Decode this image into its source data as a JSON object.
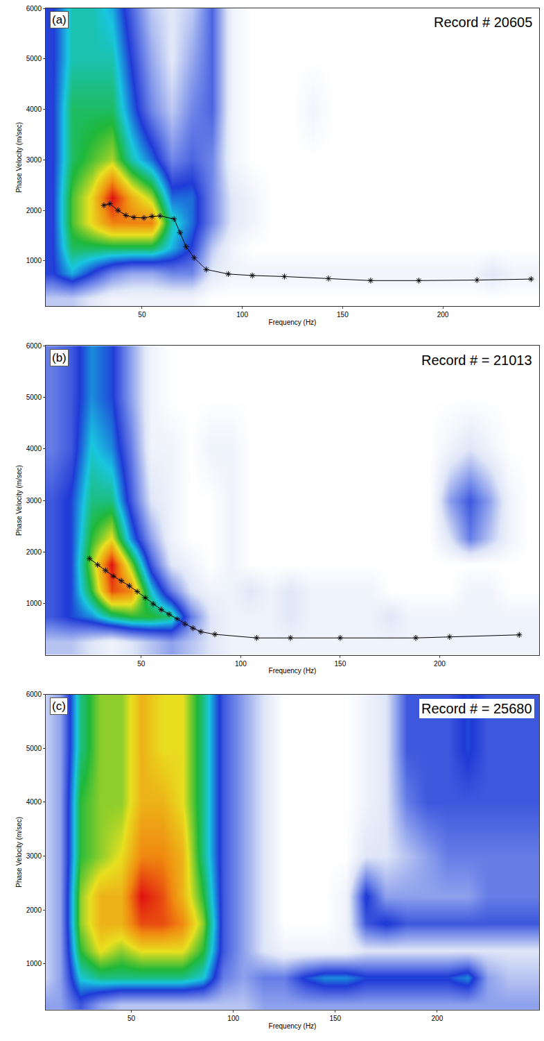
{
  "chart_data": [
    {
      "type": "heatmap",
      "panel": "(a)",
      "annotation": "Record # 20605",
      "x_label": "Frequency (Hz)",
      "y_label": "Phase Velocity (m/sec)",
      "xlim": [
        2,
        248
      ],
      "ylim": [
        100,
        6000
      ],
      "xticks": [
        50,
        100,
        150,
        200
      ],
      "yticks": [
        1000,
        2000,
        3000,
        4000,
        5000,
        6000
      ],
      "grid": false,
      "x": [
        5,
        15,
        25,
        35,
        45,
        55,
        65,
        75,
        85,
        95,
        105,
        115,
        125,
        135,
        145,
        155,
        165,
        175,
        185,
        195,
        205,
        215,
        225,
        235,
        245
      ],
      "y": [
        250,
        750,
        1250,
        1750,
        2250,
        3000,
        4000,
        5000,
        6000
      ],
      "z": [
        [
          0.2,
          0.2,
          0.15,
          0.1,
          0.1,
          0.1,
          0.1,
          0.1,
          0.05,
          0.05,
          0.05,
          0.05,
          0.05,
          0.05,
          0.05,
          0.05,
          0.05,
          0.05,
          0.05,
          0.05,
          0.05,
          0.05,
          0.05,
          0.05,
          0.05
        ],
        [
          0.4,
          0.5,
          0.4,
          0.3,
          0.25,
          0.25,
          0.3,
          0.3,
          0.15,
          0.1,
          0.1,
          0.1,
          0.1,
          0.1,
          0.1,
          0.1,
          0.1,
          0.1,
          0.1,
          0.1,
          0.1,
          0.1,
          0.15,
          0.1,
          0.1
        ],
        [
          0.4,
          0.6,
          0.6,
          0.6,
          0.6,
          0.6,
          0.5,
          0.4,
          0.2,
          0.1,
          0.05,
          0.05,
          0.05,
          0.05,
          0.05,
          0.05,
          0.05,
          0.05,
          0.05,
          0.05,
          0.05,
          0.05,
          0.05,
          0.05,
          0.05
        ],
        [
          0.4,
          0.65,
          0.75,
          0.85,
          0.85,
          0.85,
          0.55,
          0.45,
          0.3,
          0.15,
          0.1,
          0.05,
          0.05,
          0.05,
          0.05,
          0.05,
          0.05,
          0.05,
          0.05,
          0.05,
          0.05,
          0.05,
          0.05,
          0.05,
          0.05
        ],
        [
          0.4,
          0.65,
          0.75,
          0.95,
          0.8,
          0.7,
          0.45,
          0.45,
          0.3,
          0.15,
          0.1,
          0.05,
          0.05,
          0.05,
          0.05,
          0.05,
          0.05,
          0.05,
          0.05,
          0.05,
          0.05,
          0.05,
          0.05,
          0.05,
          0.05
        ],
        [
          0.4,
          0.6,
          0.65,
          0.7,
          0.55,
          0.45,
          0.3,
          0.35,
          0.3,
          0.1,
          0.05,
          0.05,
          0.05,
          0.05,
          0.05,
          0.05,
          0.05,
          0.05,
          0.05,
          0.05,
          0.05,
          0.05,
          0.05,
          0.05,
          0.05
        ],
        [
          0.4,
          0.6,
          0.6,
          0.6,
          0.45,
          0.3,
          0.2,
          0.3,
          0.35,
          0.1,
          0.05,
          0.05,
          0.05,
          0.1,
          0.05,
          0.05,
          0.05,
          0.05,
          0.05,
          0.05,
          0.05,
          0.05,
          0.05,
          0.05,
          0.05
        ],
        [
          0.4,
          0.55,
          0.55,
          0.55,
          0.4,
          0.25,
          0.15,
          0.25,
          0.35,
          0.1,
          0.05,
          0.05,
          0.05,
          0.05,
          0.05,
          0.05,
          0.05,
          0.05,
          0.05,
          0.05,
          0.05,
          0.05,
          0.05,
          0.05,
          0.05
        ],
        [
          0.4,
          0.55,
          0.55,
          0.5,
          0.35,
          0.2,
          0.15,
          0.2,
          0.35,
          0.1,
          0.05,
          0.05,
          0.05,
          0.05,
          0.05,
          0.05,
          0.05,
          0.05,
          0.05,
          0.05,
          0.05,
          0.05,
          0.05,
          0.05,
          0.05
        ]
      ],
      "series": [
        {
          "type": "line",
          "color": "#000000",
          "marker": "asterisk",
          "x": [
            31,
            34,
            38,
            42,
            46,
            51,
            55,
            59,
            66,
            69,
            72,
            76,
            82,
            93,
            105,
            121,
            143,
            164,
            188,
            217,
            244
          ],
          "values": [
            2100,
            2130,
            2000,
            1900,
            1860,
            1850,
            1880,
            1890,
            1830,
            1560,
            1280,
            1060,
            830,
            740,
            710,
            690,
            650,
            610,
            610,
            620,
            640
          ]
        }
      ]
    },
    {
      "type": "heatmap",
      "panel": "(b)",
      "annotation": "Record # = 21013",
      "x_label": "Frequency (Hz)",
      "y_label": "Phase Velocity (m/sec)",
      "xlim": [
        2,
        250
      ],
      "ylim": [
        0,
        6000
      ],
      "xticks": [
        50,
        100,
        150,
        200
      ],
      "yticks": [
        1000,
        2000,
        3000,
        4000,
        5000,
        6000
      ],
      "grid": false,
      "x": [
        5,
        15,
        25,
        35,
        45,
        55,
        65,
        75,
        85,
        95,
        105,
        115,
        125,
        135,
        145,
        155,
        165,
        175,
        185,
        195,
        205,
        215,
        225,
        235,
        245
      ],
      "y": [
        250,
        750,
        1250,
        1750,
        2250,
        3000,
        4000,
        5000,
        6000
      ],
      "z": [
        [
          0.2,
          0.2,
          0.15,
          0.1,
          0.15,
          0.2,
          0.25,
          0.2,
          0.15,
          0.1,
          0.1,
          0.1,
          0.1,
          0.1,
          0.1,
          0.1,
          0.1,
          0.1,
          0.1,
          0.1,
          0.1,
          0.1,
          0.1,
          0.1,
          0.1
        ],
        [
          0.35,
          0.4,
          0.45,
          0.55,
          0.6,
          0.6,
          0.55,
          0.3,
          0.15,
          0.1,
          0.1,
          0.1,
          0.15,
          0.1,
          0.1,
          0.1,
          0.1,
          0.15,
          0.1,
          0.1,
          0.1,
          0.1,
          0.1,
          0.1,
          0.1
        ],
        [
          0.35,
          0.4,
          0.6,
          0.85,
          0.8,
          0.5,
          0.3,
          0.15,
          0.1,
          0.1,
          0.15,
          0.1,
          0.15,
          0.1,
          0.1,
          0.1,
          0.1,
          0.05,
          0.05,
          0.05,
          0.05,
          0.1,
          0.1,
          0.05,
          0.05
        ],
        [
          0.35,
          0.4,
          0.65,
          0.9,
          0.65,
          0.35,
          0.15,
          0.1,
          0.05,
          0.1,
          0.05,
          0.05,
          0.05,
          0.05,
          0.05,
          0.05,
          0.05,
          0.05,
          0.05,
          0.05,
          0.05,
          0.05,
          0.05,
          0.05,
          0.05
        ],
        [
          0.35,
          0.4,
          0.6,
          0.7,
          0.45,
          0.25,
          0.1,
          0.05,
          0.05,
          0.1,
          0.05,
          0.05,
          0.05,
          0.05,
          0.05,
          0.05,
          0.05,
          0.05,
          0.05,
          0.05,
          0.15,
          0.3,
          0.2,
          0.1,
          0.05
        ],
        [
          0.35,
          0.4,
          0.55,
          0.55,
          0.35,
          0.15,
          0.1,
          0.05,
          0.05,
          0.1,
          0.05,
          0.05,
          0.05,
          0.05,
          0.05,
          0.05,
          0.05,
          0.05,
          0.05,
          0.05,
          0.25,
          0.35,
          0.25,
          0.1,
          0.05
        ],
        [
          0.3,
          0.35,
          0.5,
          0.45,
          0.3,
          0.1,
          0.1,
          0.05,
          0.1,
          0.1,
          0.05,
          0.05,
          0.05,
          0.05,
          0.05,
          0.05,
          0.05,
          0.05,
          0.05,
          0.05,
          0.1,
          0.15,
          0.1,
          0.05,
          0.05
        ],
        [
          0.3,
          0.35,
          0.45,
          0.4,
          0.25,
          0.1,
          0.05,
          0.05,
          0.05,
          0.05,
          0.05,
          0.05,
          0.05,
          0.05,
          0.05,
          0.05,
          0.05,
          0.05,
          0.05,
          0.05,
          0.05,
          0.05,
          0.05,
          0.05,
          0.05
        ],
        [
          0.3,
          0.35,
          0.45,
          0.4,
          0.25,
          0.1,
          0.05,
          0.05,
          0.05,
          0.05,
          0.05,
          0.05,
          0.05,
          0.05,
          0.05,
          0.05,
          0.05,
          0.05,
          0.05,
          0.05,
          0.05,
          0.05,
          0.05,
          0.05,
          0.05
        ]
      ],
      "series": [
        {
          "type": "line",
          "color": "#000000",
          "marker": "asterisk",
          "x": [
            24,
            28,
            32,
            36,
            40,
            44,
            48,
            52,
            56,
            60,
            64,
            68,
            72,
            76,
            80,
            87,
            108,
            125,
            150,
            188,
            205,
            240
          ],
          "values": [
            1870,
            1750,
            1640,
            1530,
            1440,
            1340,
            1230,
            1110,
            990,
            880,
            790,
            700,
            600,
            520,
            450,
            400,
            330,
            330,
            330,
            330,
            350,
            390
          ]
        }
      ]
    },
    {
      "type": "heatmap",
      "panel": "(c)",
      "annotation": "Record # = 25680",
      "x_label": "Frequency (Hz)",
      "y_label": "Phase Velocity (m/sec)",
      "xlim": [
        8,
        250
      ],
      "ylim": [
        150,
        6000
      ],
      "xticks": [
        50,
        100,
        150,
        200
      ],
      "yticks": [
        1000,
        2000,
        3000,
        4000,
        5000,
        6000
      ],
      "grid": false,
      "x": [
        5,
        15,
        25,
        35,
        45,
        55,
        65,
        75,
        85,
        95,
        105,
        115,
        125,
        135,
        145,
        155,
        165,
        175,
        185,
        195,
        205,
        215,
        225,
        235,
        245
      ],
      "y": [
        250,
        750,
        1250,
        1750,
        2250,
        3000,
        4000,
        5000,
        6000
      ],
      "z": [
        [
          0.2,
          0.2,
          0.3,
          0.2,
          0.15,
          0.15,
          0.15,
          0.15,
          0.15,
          0.15,
          0.15,
          0.2,
          0.2,
          0.2,
          0.2,
          0.2,
          0.2,
          0.2,
          0.2,
          0.2,
          0.2,
          0.2,
          0.2,
          0.2,
          0.2
        ],
        [
          0.1,
          0.2,
          0.45,
          0.5,
          0.5,
          0.5,
          0.5,
          0.5,
          0.45,
          0.25,
          0.2,
          0.25,
          0.25,
          0.35,
          0.4,
          0.4,
          0.35,
          0.35,
          0.35,
          0.35,
          0.35,
          0.4,
          0.2,
          0.15,
          0.15
        ],
        [
          0.1,
          0.2,
          0.55,
          0.65,
          0.6,
          0.65,
          0.65,
          0.65,
          0.55,
          0.3,
          0.2,
          0.1,
          0.05,
          0.05,
          0.05,
          0.05,
          0.1,
          0.1,
          0.1,
          0.1,
          0.1,
          0.1,
          0.1,
          0.1,
          0.1
        ],
        [
          0.1,
          0.2,
          0.6,
          0.7,
          0.7,
          0.8,
          0.8,
          0.75,
          0.6,
          0.3,
          0.2,
          0.1,
          0,
          0,
          0,
          0.05,
          0.3,
          0.35,
          0.3,
          0.3,
          0.3,
          0.3,
          0.3,
          0.3,
          0.3
        ],
        [
          0.1,
          0.2,
          0.6,
          0.7,
          0.7,
          0.85,
          0.8,
          0.7,
          0.55,
          0.3,
          0.2,
          0.1,
          0,
          0,
          0,
          0.05,
          0.35,
          0.2,
          0.2,
          0.2,
          0.2,
          0.2,
          0.25,
          0.25,
          0.25
        ],
        [
          0.1,
          0.2,
          0.55,
          0.6,
          0.65,
          0.75,
          0.75,
          0.7,
          0.5,
          0.3,
          0.2,
          0.1,
          0,
          0,
          0,
          0,
          0.1,
          0.1,
          0.15,
          0.2,
          0.25,
          0.25,
          0.25,
          0.25,
          0.25
        ],
        [
          0.1,
          0.2,
          0.55,
          0.6,
          0.6,
          0.7,
          0.7,
          0.65,
          0.5,
          0.3,
          0.2,
          0.1,
          0,
          0,
          0,
          0,
          0.05,
          0.1,
          0.25,
          0.3,
          0.3,
          0.3,
          0.3,
          0.3,
          0.3
        ],
        [
          0.1,
          0.2,
          0.5,
          0.6,
          0.6,
          0.7,
          0.65,
          0.65,
          0.5,
          0.3,
          0.2,
          0.1,
          0,
          0,
          0,
          0,
          0.05,
          0.1,
          0.3,
          0.3,
          0.3,
          0.35,
          0.3,
          0.3,
          0.3
        ],
        [
          0.1,
          0.2,
          0.5,
          0.6,
          0.6,
          0.7,
          0.65,
          0.65,
          0.5,
          0.3,
          0.2,
          0.1,
          0,
          0,
          0,
          0,
          0.05,
          0.1,
          0.3,
          0.3,
          0.3,
          0.35,
          0.3,
          0.3,
          0.3
        ]
      ]
    }
  ]
}
